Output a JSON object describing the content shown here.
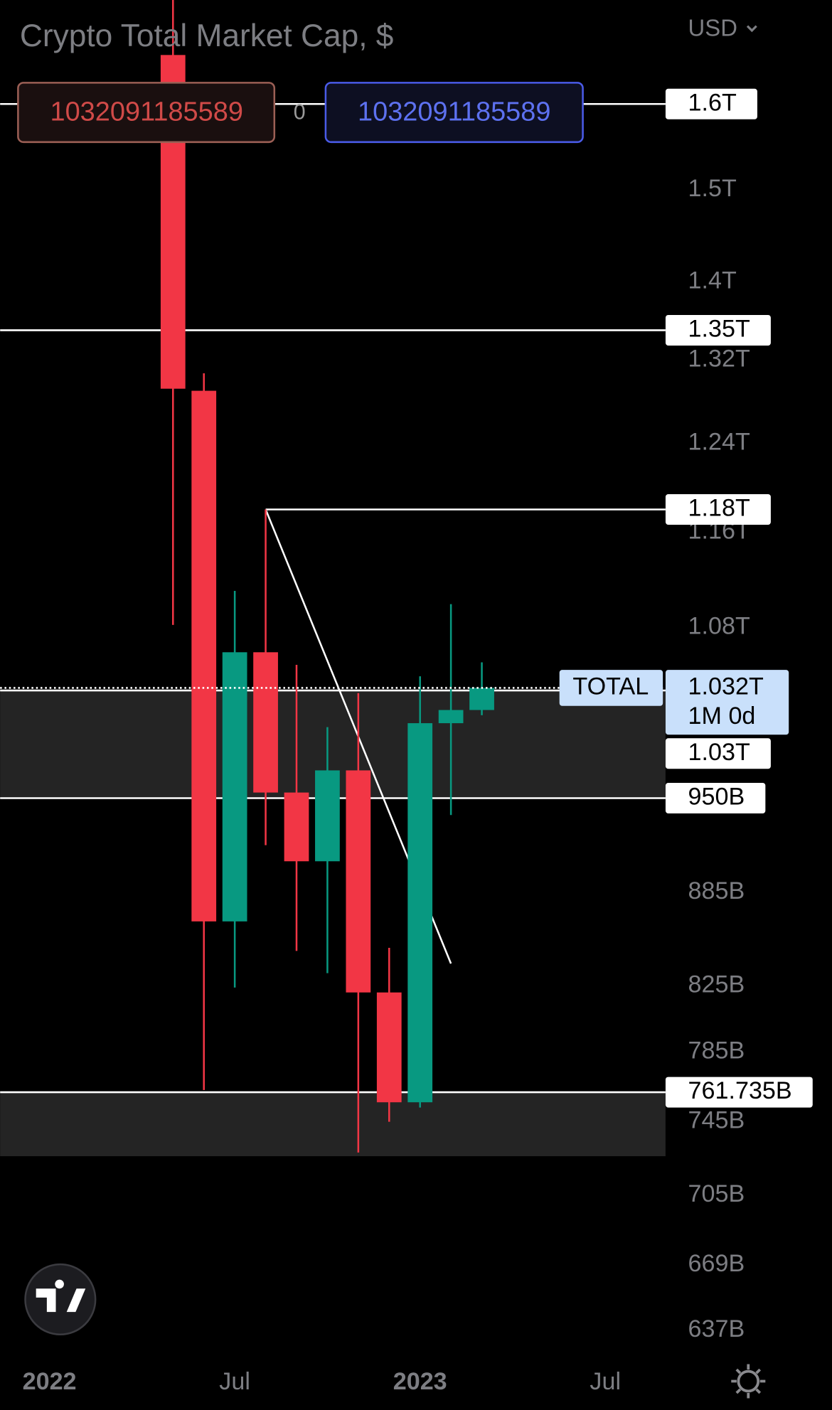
{
  "chart_data": {
    "type": "candlestick",
    "title": "Crypto Total Market Cap, $",
    "currency": "USD",
    "ohlc_header": [
      1032091185589,
      0,
      1032091185589
    ],
    "x": [
      4,
      5,
      6,
      7,
      8,
      9,
      10,
      11,
      12,
      13,
      14
    ],
    "open": [
      1660,
      1290,
      866,
      1060,
      954,
      906,
      970,
      821,
      756,
      1005,
      1015
    ],
    "high": [
      1800,
      1307,
      1110,
      1180,
      1050,
      1002,
      1028,
      849,
      1041,
      1099,
      1052
    ],
    "low": [
      1082,
      763,
      824,
      917,
      847,
      833,
      728,
      745,
      753,
      938,
      1011
    ],
    "close": [
      1292,
      866,
      1060,
      954,
      906,
      970,
      821,
      756,
      1005,
      1015,
      1032
    ],
    "up_color": "#089981",
    "down_color": "#f23645",
    "yscale": "log",
    "ylim": [
      600,
      1730
    ],
    "yticks": [
      {
        "value": 1500,
        "label": "1.5T"
      },
      {
        "value": 1400,
        "label": "1.4T"
      },
      {
        "value": 1320,
        "label": "1.32T"
      },
      {
        "value": 1240,
        "label": "1.24T"
      },
      {
        "value": 1160,
        "label": "1.16T"
      },
      {
        "value": 1080,
        "label": "1.08T"
      },
      {
        "value": 885,
        "label": "885B"
      },
      {
        "value": 825,
        "label": "825B"
      },
      {
        "value": 785,
        "label": "785B"
      },
      {
        "value": 745,
        "label": "745B"
      },
      {
        "value": 705,
        "label": "705B"
      },
      {
        "value": 669,
        "label": "669B"
      },
      {
        "value": 637,
        "label": "637B"
      }
    ],
    "xlim": [
      -1.6,
      19.95
    ],
    "xticks": [
      {
        "value": 0,
        "label": "2022"
      },
      {
        "value": 6,
        "label": "Jul"
      },
      {
        "value": 12,
        "label": "2023"
      },
      {
        "value": 18,
        "label": "Jul"
      }
    ],
    "zones": [
      {
        "from": 950,
        "to": 1030
      },
      {
        "from": 726,
        "to": 761.735
      }
    ],
    "hlines": [
      {
        "value": 1600,
        "label": "1.6T"
      },
      {
        "value": 1350,
        "label": "1.35T"
      },
      {
        "value": 1180,
        "label": "1.18T",
        "from_x": 7
      },
      {
        "value": 1030,
        "label": "1.03T"
      },
      {
        "value": 950,
        "label": "950B"
      },
      {
        "value": 761.735,
        "label": "761.735B"
      }
    ],
    "trend_line": {
      "x": [
        7,
        13
      ],
      "y": [
        1180,
        839
      ]
    },
    "price_label": {
      "name": "TOTAL",
      "value": 1032,
      "value_label": "1.032T",
      "countdown": "1M 0d"
    }
  }
}
